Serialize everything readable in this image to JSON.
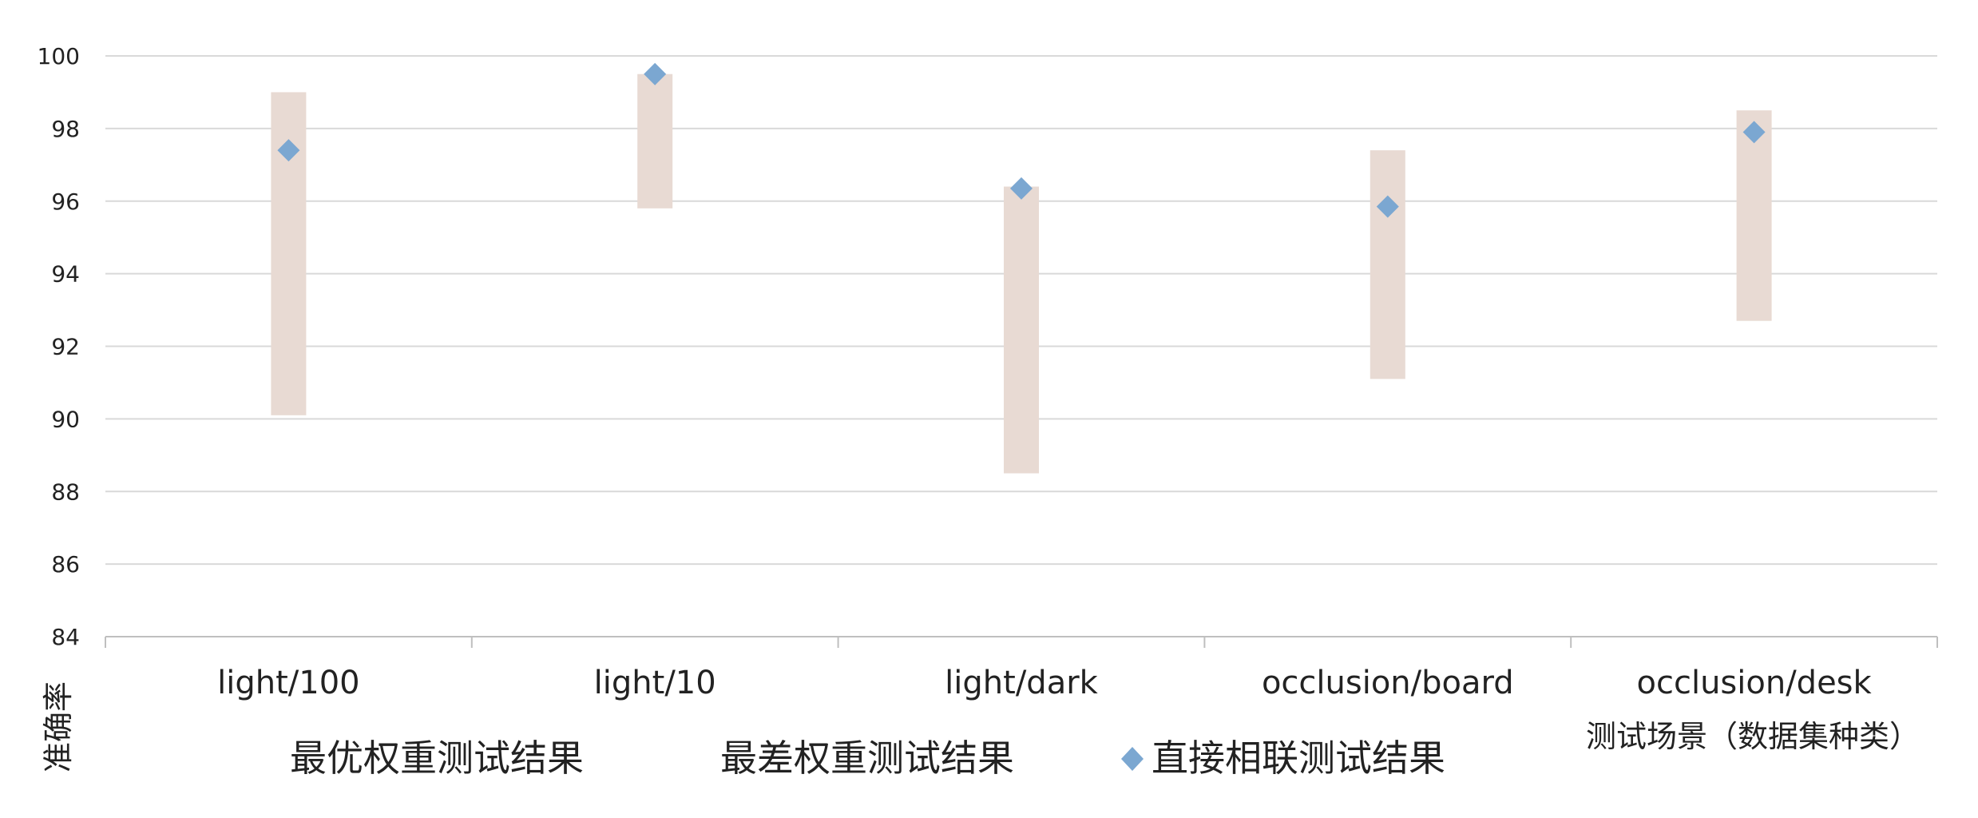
{
  "chart_data": {
    "type": "range-bar-with-markers",
    "categories": [
      "light/100",
      "light/10",
      "light/dark",
      "occlusion/board",
      "occlusion/desk"
    ],
    "ylabel": "准确率",
    "xlabel": "测试场景（数据集种类）",
    "ylim": [
      84,
      100
    ],
    "yticks": [
      100,
      98,
      96,
      94,
      92,
      90,
      88,
      86,
      84
    ],
    "grid": true,
    "legend_placement": "bottom",
    "series": [
      {
        "name": "最优权重测试结果",
        "values": [
          99.0,
          99.5,
          96.4,
          97.4,
          98.5
        ]
      },
      {
        "name": "最差权重测试结果",
        "values": [
          90.1,
          95.8,
          88.5,
          91.1,
          92.7
        ]
      },
      {
        "name": "直接相联测试结果",
        "values": [
          97.4,
          99.5,
          96.35,
          95.85,
          97.9
        ]
      }
    ],
    "colors": {
      "range_bar": "#E8DAD3",
      "marker": "#7BA7D1",
      "grid": "#D9D9D9",
      "axis": "#BFBFBF"
    },
    "marker_icon": "diamond-icon"
  }
}
